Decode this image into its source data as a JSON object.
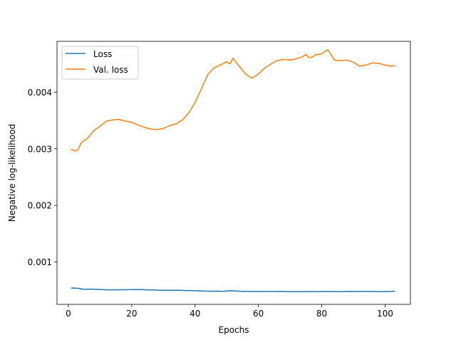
{
  "chart_data": {
    "type": "line",
    "xlabel": "Epochs",
    "ylabel": "Negative log-likelihood",
    "xlim": [
      -3.6,
      108
    ],
    "ylim": [
      0.00025,
      0.0049
    ],
    "xticks": [
      0,
      20,
      40,
      60,
      80,
      100
    ],
    "yticks": [
      0.001,
      0.002,
      0.003,
      0.004
    ],
    "xtick_labels": [
      "0",
      "20",
      "40",
      "60",
      "80",
      "100"
    ],
    "ytick_labels": [
      "0.001",
      "0.002",
      "0.003",
      "0.004"
    ],
    "grid": false,
    "legend_position": "upper-left",
    "series": [
      {
        "name": "Loss",
        "color": "#1f77b4",
        "x": [
          1,
          3,
          5,
          7,
          9,
          11,
          13,
          15,
          17,
          19,
          21,
          23,
          25,
          27,
          29,
          31,
          33,
          35,
          37,
          39,
          41,
          43,
          45,
          47,
          49,
          51,
          53,
          55,
          57,
          59,
          61,
          63,
          65,
          67,
          69,
          71,
          73,
          75,
          77,
          79,
          81,
          83,
          85,
          87,
          89,
          91,
          93,
          95,
          97,
          99,
          101,
          103
        ],
        "values": [
          0.00054,
          0.000535,
          0.000515,
          0.00052,
          0.000515,
          0.00051,
          0.000505,
          0.000508,
          0.000508,
          0.00051,
          0.000512,
          0.000512,
          0.000505,
          0.000505,
          0.0005,
          0.000498,
          0.0005,
          0.000498,
          0.000495,
          0.000495,
          0.00049,
          0.000485,
          0.000482,
          0.000485,
          0.00048,
          0.000492,
          0.000485,
          0.00048,
          0.00048,
          0.000478,
          0.000478,
          0.000478,
          0.000478,
          0.00048,
          0.000475,
          0.000475,
          0.000475,
          0.000475,
          0.000478,
          0.000475,
          0.000478,
          0.000478,
          0.000475,
          0.000478,
          0.00048,
          0.000478,
          0.00048,
          0.000478,
          0.000478,
          0.000475,
          0.000478,
          0.00048
        ]
      },
      {
        "name": "Val. loss",
        "color": "#ff7f0e",
        "x": [
          1,
          2,
          3,
          4,
          5,
          6,
          7,
          8,
          10,
          12,
          14,
          16,
          18,
          20,
          22,
          24,
          26,
          28,
          30,
          32,
          34,
          36,
          38,
          40,
          42,
          44,
          46,
          48,
          50,
          51,
          52,
          54,
          56,
          58,
          60,
          62,
          64,
          66,
          68,
          70,
          72,
          74,
          75,
          76,
          77,
          78,
          80,
          81,
          82,
          84,
          86,
          88,
          90,
          92,
          94,
          96,
          98,
          100,
          102,
          103
        ],
        "values": [
          0.00299,
          0.00296,
          0.00298,
          0.0031,
          0.00315,
          0.00318,
          0.00325,
          0.00332,
          0.0034,
          0.00349,
          0.00351,
          0.00352,
          0.00349,
          0.00347,
          0.00342,
          0.00338,
          0.00335,
          0.00334,
          0.00336,
          0.00341,
          0.00344,
          0.00351,
          0.00363,
          0.00382,
          0.00406,
          0.00431,
          0.00443,
          0.00448,
          0.00454,
          0.0045,
          0.0046,
          0.00446,
          0.00432,
          0.00425,
          0.00432,
          0.00443,
          0.0045,
          0.00456,
          0.00458,
          0.00457,
          0.00459,
          0.00463,
          0.00467,
          0.00461,
          0.00462,
          0.00466,
          0.00468,
          0.00472,
          0.00475,
          0.00457,
          0.00456,
          0.00457,
          0.00453,
          0.00446,
          0.00448,
          0.00452,
          0.00451,
          0.00448,
          0.00446,
          0.00447
        ]
      }
    ]
  }
}
